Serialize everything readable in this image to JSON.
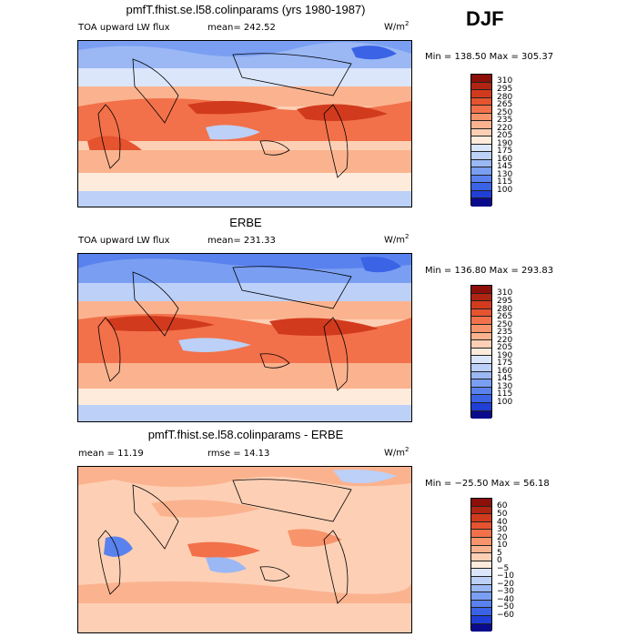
{
  "season": "DJF",
  "colors": {
    "full": [
      "#0a0a8c",
      "#1f3fd6",
      "#3a63e6",
      "#5a82ee",
      "#7a9ff2",
      "#9bb8f5",
      "#bcd0f8",
      "#dbe6fb",
      "#ffebdc",
      "#fdd0b5",
      "#fbb38f",
      "#f8946b",
      "#f2714a",
      "#e5532f",
      "#d23a1e",
      "#b02412",
      "#8c0f0a"
    ],
    "diff": [
      "#0a0a8c",
      "#1f3fd6",
      "#3a63e6",
      "#5a82ee",
      "#7a9ff2",
      "#9bb8f5",
      "#bcd0f8",
      "#dbe6fb",
      "#ffebdc",
      "#fdd0b5",
      "#fbb38f",
      "#f8946b",
      "#f2714a",
      "#e5532f",
      "#d23a1e",
      "#b02412",
      "#8c0f0a"
    ]
  },
  "panels": [
    {
      "title": "pmfT.fhist.se.l58.colinparams (yrs 1980-1987)",
      "left_label": "TOA upward LW flux",
      "stat": "mean= 242.52",
      "unit": "W/m",
      "unit_sup": "2",
      "minmax": "Min = 138.50 Max = 305.37",
      "cbar_labels": [
        "310",
        "295",
        "280",
        "265",
        "250",
        "235",
        "220",
        "205",
        "190",
        "175",
        "160",
        "145",
        "130",
        "115",
        "100"
      ]
    },
    {
      "title": "ERBE",
      "left_label": "TOA upward LW flux",
      "stat": "mean= 231.33",
      "unit": "W/m",
      "unit_sup": "2",
      "minmax": "Min = 136.80 Max = 293.83",
      "cbar_labels": [
        "310",
        "295",
        "280",
        "265",
        "250",
        "235",
        "220",
        "205",
        "190",
        "175",
        "160",
        "145",
        "130",
        "115",
        "100"
      ]
    },
    {
      "title": "pmfT.fhist.se.l58.colinparams - ERBE",
      "left_label": "mean = 11.19",
      "stat": "rmse = 14.13",
      "unit": "W/m",
      "unit_sup": "2",
      "minmax": "Min = −25.50 Max = 56.18",
      "cbar_labels": [
        "60",
        "50",
        "40",
        "30",
        "20",
        "10",
        "5",
        "0",
        "−5",
        "−10",
        "−20",
        "−30",
        "−40",
        "−50",
        "−60"
      ]
    }
  ]
}
